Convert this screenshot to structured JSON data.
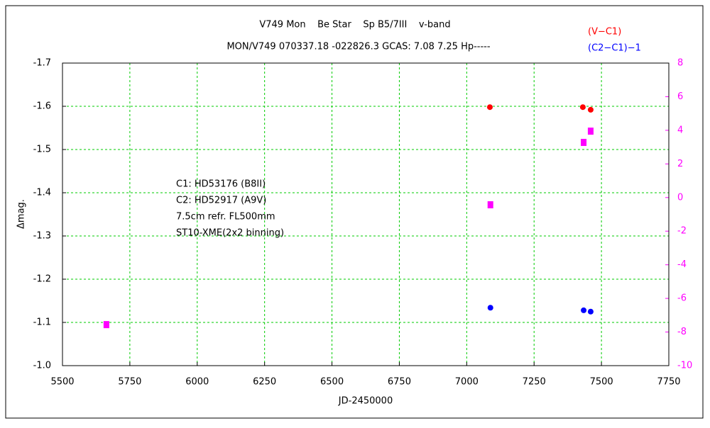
{
  "chart_data": {
    "type": "scatter",
    "title": "V749 Mon    Be Star    Sp B5/7III    v-band",
    "subtitle": "MON/V749 070337.18 -022826.3 GCAS: 7.08 7.25 Hp-----",
    "xlabel": "JD-2450000",
    "ylabel": "Δmag.",
    "annotations": [
      "C1: HD53176 (B8II)",
      "C2: HD52917 (A9V)",
      "7.5cm refr. FL500mm",
      "ST10-XME(2x2 binning)"
    ],
    "xlim": [
      5500,
      7750
    ],
    "xticks": [
      5500,
      5750,
      6000,
      6250,
      6500,
      6750,
      7000,
      7250,
      7500,
      7750
    ],
    "ylim": [
      -1.0,
      -1.7
    ],
    "yticks": [
      {
        "value": -1.0,
        "label": "-1.0"
      },
      -1.1,
      -1.2,
      -1.3,
      -1.4,
      -1.5,
      -1.6,
      -1.7
    ],
    "y2lim": [
      -10,
      8
    ],
    "y2ticks": [
      -10,
      -8,
      -6,
      -4,
      -2,
      0,
      2,
      4,
      6,
      8
    ],
    "y2color": "#ff00ff",
    "grid": true,
    "grid_color": "#00cc00",
    "series": [
      {
        "name": "(V−C1)",
        "color": "#ff0000",
        "marker": "circle",
        "x": [
          7086,
          7431,
          7460
        ],
        "values": [
          -1.598,
          -1.598,
          -1.592
        ]
      },
      {
        "name": "(C2−C1)−1",
        "color": "#0000ff",
        "marker": "circle",
        "x": [
          7088,
          7434,
          7460
        ],
        "values": [
          -1.134,
          -1.128,
          -1.125
        ]
      },
      {
        "color": "#ff00ff",
        "marker": "square",
        "axis": "y2",
        "x": [
          5663,
          7088,
          7434,
          7460
        ],
        "values": [
          -7.56,
          -0.43,
          3.28,
          3.95
        ]
      }
    ]
  }
}
